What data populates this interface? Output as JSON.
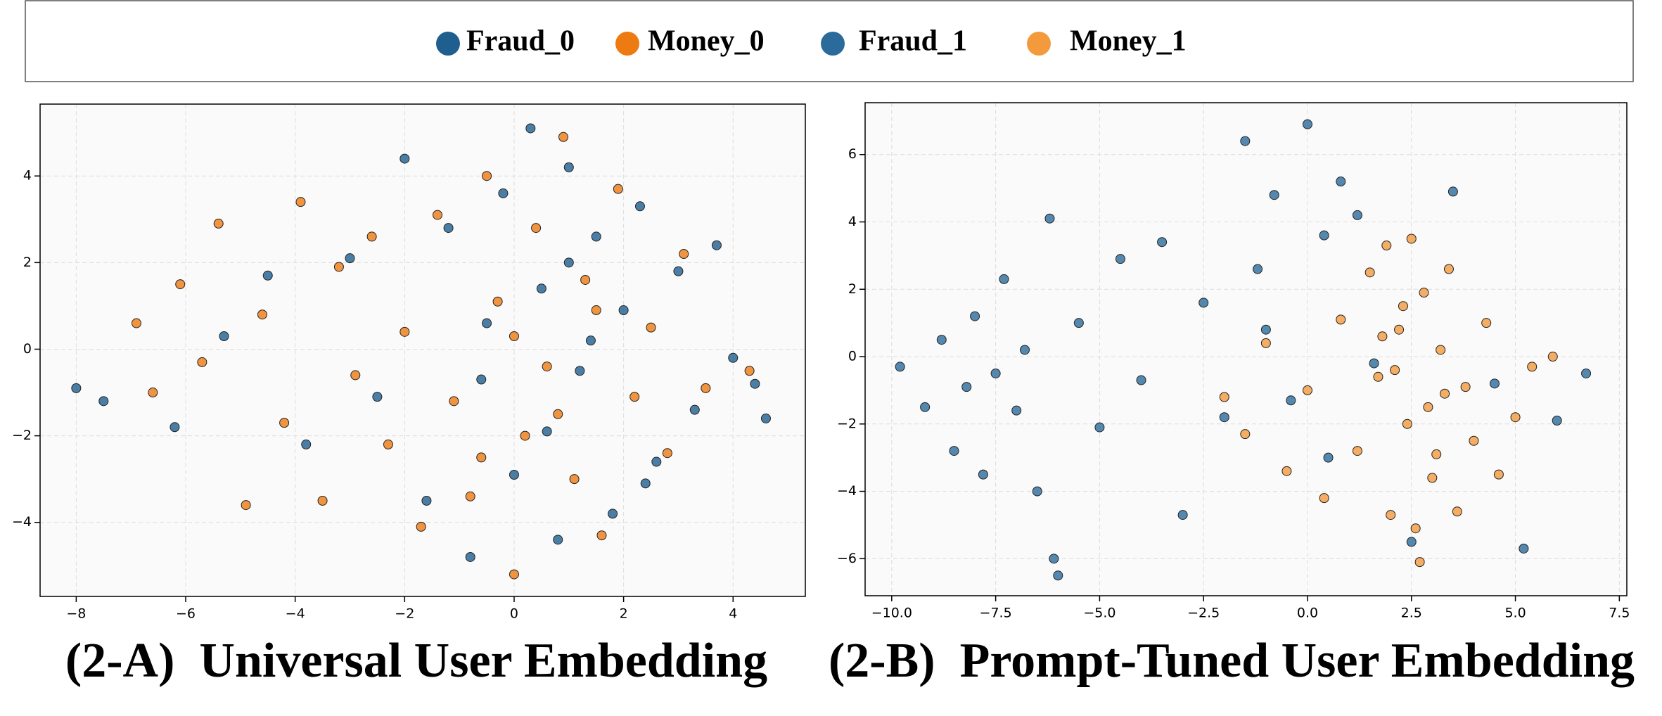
{
  "chart_data": [
    {
      "type": "scatter",
      "title": "(2-A)  Universal User Embedding",
      "grid": true,
      "xlim": [
        -8.66,
        5.32
      ],
      "ylim": [
        -5.71,
        5.66
      ],
      "xticks": [
        {
          "value": -8,
          "label": "−8"
        },
        {
          "value": -6,
          "label": "−6"
        },
        {
          "value": -4,
          "label": "−4"
        },
        {
          "value": -2,
          "label": "−2"
        },
        0,
        2,
        4
      ],
      "yticks": [
        {
          "value": -4,
          "label": "−4"
        },
        {
          "value": -2,
          "label": "−2"
        },
        0,
        2,
        4
      ],
      "series": [
        {
          "name": "Fraud_0",
          "color": "#1f5f8f",
          "x": [
            -8.0,
            -7.5,
            -6.2,
            -5.3,
            -4.5,
            -3.8,
            -3.0,
            -2.5,
            -2.0,
            -1.6,
            -1.2,
            -0.8,
            -0.5,
            -0.2,
            0.0,
            0.3,
            0.5,
            0.8,
            1.0,
            1.2,
            1.5,
            1.8,
            2.0,
            2.3,
            2.6,
            3.0,
            3.3,
            3.7,
            4.0,
            4.4,
            4.6,
            0.6,
            1.4,
            -0.6,
            2.4,
            1.0
          ],
          "values": [
            -0.9,
            -1.2,
            -1.8,
            0.3,
            1.7,
            -2.2,
            2.1,
            -1.1,
            4.4,
            -3.5,
            2.8,
            -4.8,
            0.6,
            3.6,
            -2.9,
            5.1,
            1.4,
            -4.4,
            4.2,
            -0.5,
            2.6,
            -3.8,
            0.9,
            3.3,
            -2.6,
            1.8,
            -1.4,
            2.4,
            -0.2,
            -0.8,
            -1.6,
            -1.9,
            0.2,
            -0.7,
            -3.1,
            2.0
          ]
        },
        {
          "name": "Money_0",
          "color": "#ee7a12",
          "x": [
            -6.9,
            -6.6,
            -6.1,
            -5.7,
            -5.4,
            -4.9,
            -4.6,
            -4.2,
            -3.9,
            -3.5,
            -3.2,
            -2.9,
            -2.6,
            -2.3,
            -2.0,
            -1.7,
            -1.4,
            -1.1,
            -0.8,
            -0.5,
            -0.3,
            0.0,
            0.2,
            0.4,
            0.6,
            0.9,
            1.1,
            1.3,
            1.6,
            1.9,
            2.2,
            2.5,
            2.8,
            3.1,
            3.5,
            4.3,
            0.0,
            0.8,
            1.5,
            -0.6
          ],
          "values": [
            0.6,
            -1.0,
            1.5,
            -0.3,
            2.9,
            -3.6,
            0.8,
            -1.7,
            3.4,
            -3.5,
            1.9,
            -0.6,
            2.6,
            -2.2,
            0.4,
            -4.1,
            3.1,
            -1.2,
            -3.4,
            4.0,
            1.1,
            -5.2,
            -2.0,
            2.8,
            -0.4,
            4.9,
            -3.0,
            1.6,
            -4.3,
            3.7,
            -1.1,
            0.5,
            -2.4,
            2.2,
            -0.9,
            -0.5,
            0.3,
            -1.5,
            0.9,
            -2.5
          ]
        }
      ]
    },
    {
      "type": "scatter",
      "title": "(2-B)  Prompt-Tuned User Embedding",
      "grid": true,
      "xlim": [
        -10.64,
        7.68
      ],
      "ylim": [
        -7.1,
        7.54
      ],
      "xticks": [
        {
          "value": -10,
          "label": "−10.0"
        },
        {
          "value": -7.5,
          "label": "−7.5"
        },
        {
          "value": -5,
          "label": "−5.0"
        },
        {
          "value": -2.5,
          "label": "−2.5"
        },
        {
          "value": 0,
          "label": "0.0"
        },
        2.5,
        {
          "value": 5,
          "label": "5.0"
        },
        7.5
      ],
      "yticks": [
        {
          "value": -6,
          "label": "−6"
        },
        {
          "value": -4,
          "label": "−4"
        },
        {
          "value": -2,
          "label": "−2"
        },
        0,
        2,
        4,
        6
      ],
      "series": [
        {
          "name": "Fraud_1",
          "color": "#2a6b9b",
          "x": [
            -9.8,
            -9.2,
            -8.8,
            -8.5,
            -8.2,
            -8.0,
            -7.8,
            -7.5,
            -7.3,
            -7.0,
            -6.8,
            -6.5,
            -6.2,
            -6.0,
            -5.5,
            -5.0,
            -4.5,
            -4.0,
            -3.5,
            -3.0,
            -2.5,
            -2.0,
            -1.5,
            -1.2,
            -0.8,
            -0.4,
            0.0,
            0.4,
            0.8,
            1.2,
            1.6,
            3.5,
            4.5,
            5.2,
            6.0,
            6.7,
            -6.1,
            -1.0,
            0.5,
            2.5
          ],
          "values": [
            -0.3,
            -1.5,
            0.5,
            -2.8,
            -0.9,
            1.2,
            -3.5,
            -0.5,
            2.3,
            -1.6,
            0.2,
            -4.0,
            4.1,
            -6.5,
            1.0,
            -2.1,
            2.9,
            -0.7,
            3.4,
            -4.7,
            1.6,
            -1.8,
            6.4,
            2.6,
            4.8,
            -1.3,
            6.9,
            3.6,
            5.2,
            4.2,
            -0.2,
            4.9,
            -0.8,
            -5.7,
            -1.9,
            -0.5,
            -6.0,
            0.8,
            -3.0,
            -5.5
          ]
        },
        {
          "name": "Money_1",
          "color": "#f39a3c",
          "x": [
            -2.0,
            -1.5,
            -1.0,
            -0.5,
            0.0,
            0.4,
            0.8,
            1.2,
            1.5,
            1.7,
            1.9,
            2.0,
            2.2,
            2.4,
            2.5,
            2.6,
            2.8,
            2.9,
            3.0,
            3.2,
            3.4,
            3.6,
            3.8,
            4.0,
            4.3,
            4.6,
            5.0,
            5.4,
            5.9,
            2.1,
            2.7,
            3.3,
            1.8,
            3.1,
            2.3
          ],
          "values": [
            -1.2,
            -2.3,
            0.4,
            -3.4,
            -1.0,
            -4.2,
            1.1,
            -2.8,
            2.5,
            -0.6,
            3.3,
            -4.7,
            0.8,
            -2.0,
            3.5,
            -5.1,
            1.9,
            -1.5,
            -3.6,
            0.2,
            2.6,
            -4.6,
            -0.9,
            -2.5,
            1.0,
            -3.5,
            -1.8,
            -0.3,
            0.0,
            -0.4,
            -6.1,
            -1.1,
            0.6,
            -2.9,
            1.5
          ]
        }
      ]
    }
  ]
}
